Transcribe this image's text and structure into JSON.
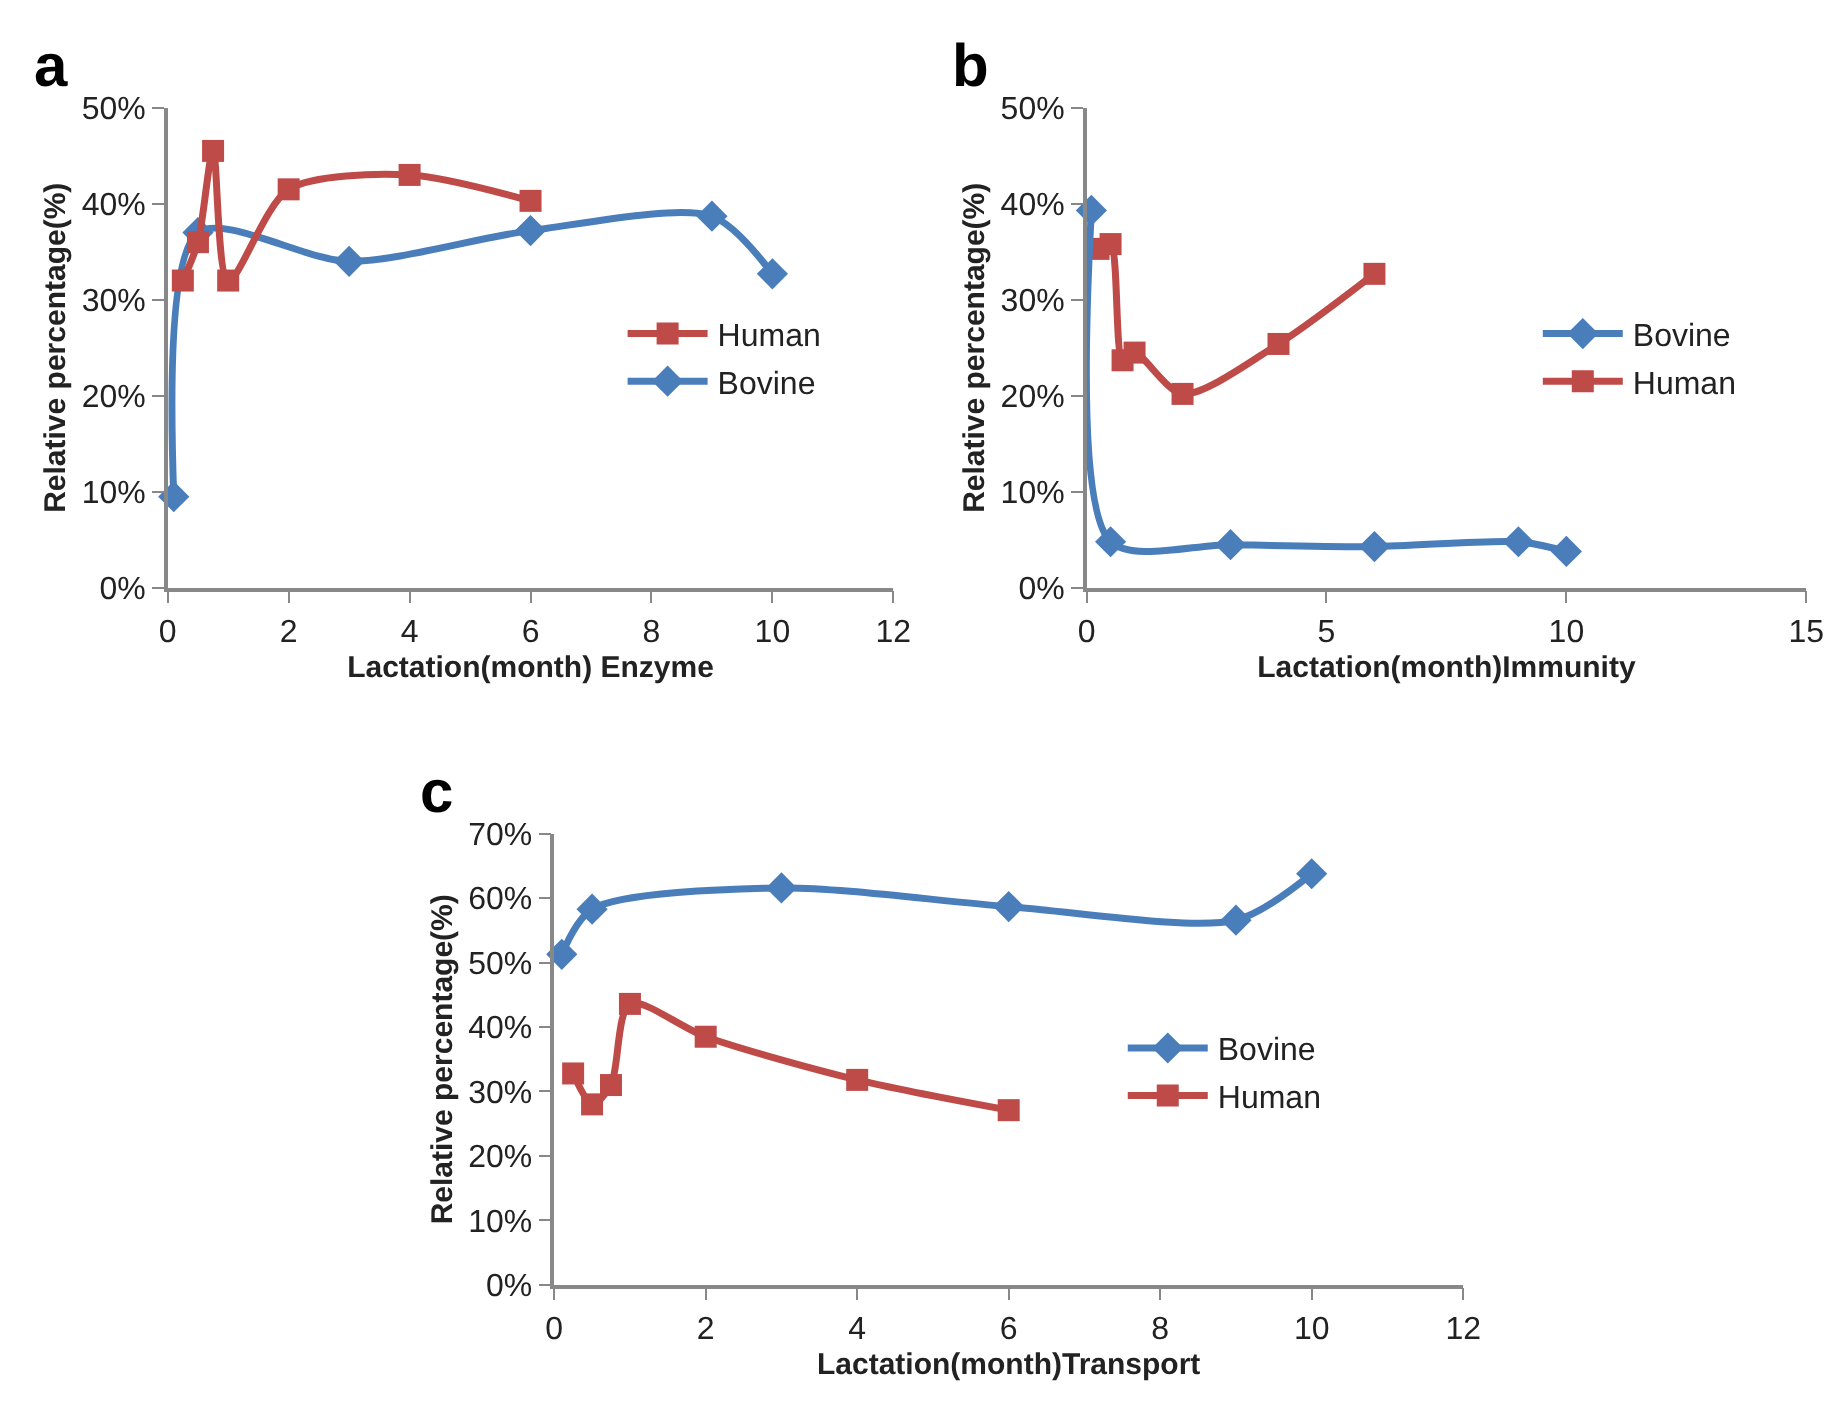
{
  "chart_data": [
    {
      "type": "line",
      "title": "a",
      "xlabel": "Lactation(month) Enzyme",
      "ylabel": "Relative percentage(%)",
      "xlim": [
        0,
        12
      ],
      "xticks": [
        0,
        2,
        4,
        6,
        8,
        10,
        12
      ],
      "ylim": [
        0,
        50
      ],
      "yticks": [
        {
          "value": 0,
          "label": "0%"
        },
        {
          "value": 10,
          "label": "10%"
        },
        {
          "value": 20,
          "label": "20%"
        },
        {
          "value": 30,
          "label": "30%"
        },
        {
          "value": 40,
          "label": "40%"
        },
        {
          "value": 50,
          "label": "50%"
        }
      ],
      "grid": false,
      "legend": "right",
      "series": [
        {
          "name": "Human",
          "color": "#be4b48",
          "marker": "square",
          "x": [
            0.25,
            0.5,
            0.75,
            1,
            2,
            4,
            6
          ],
          "values": [
            32,
            36,
            45.5,
            32,
            41.5,
            43,
            40.3
          ]
        },
        {
          "name": "Bovine",
          "color": "#4a7ebb",
          "marker": "diamond",
          "x": [
            0.1,
            0.5,
            3,
            6,
            9,
            10
          ],
          "values": [
            9.5,
            37,
            34,
            37.2,
            38.7,
            32.7
          ]
        }
      ]
    },
    {
      "type": "line",
      "title": "b",
      "xlabel": "Lactation(month)Immunity",
      "ylabel": "Relative percentage(%)",
      "xlim": [
        0,
        15
      ],
      "xticks": [
        0,
        5,
        10,
        15
      ],
      "ylim": [
        0,
        50
      ],
      "yticks": [
        {
          "value": 0,
          "label": "0%"
        },
        {
          "value": 10,
          "label": "10%"
        },
        {
          "value": 20,
          "label": "20%"
        },
        {
          "value": 30,
          "label": "30%"
        },
        {
          "value": 40,
          "label": "40%"
        },
        {
          "value": 50,
          "label": "50%"
        }
      ],
      "grid": false,
      "legend": "right",
      "series": [
        {
          "name": "Bovine",
          "color": "#4a7ebb",
          "marker": "diamond",
          "x": [
            0.1,
            0.5,
            3,
            6,
            9,
            10
          ],
          "values": [
            39.3,
            4.8,
            4.5,
            4.3,
            4.8,
            3.8
          ]
        },
        {
          "name": "Human",
          "color": "#be4b48",
          "marker": "square",
          "x": [
            0.25,
            0.5,
            0.75,
            1,
            2,
            4,
            6
          ],
          "values": [
            35.3,
            35.8,
            23.7,
            24.5,
            20.2,
            25.4,
            32.7
          ]
        }
      ]
    },
    {
      "type": "line",
      "title": "c",
      "xlabel": "Lactation(month)Transport",
      "ylabel": "Relative percentage(%)",
      "xlim": [
        0,
        12
      ],
      "xticks": [
        0,
        2,
        4,
        6,
        8,
        10,
        12
      ],
      "ylim": [
        0,
        70
      ],
      "yticks": [
        {
          "value": 0,
          "label": "0%"
        },
        {
          "value": 10,
          "label": "10%"
        },
        {
          "value": 20,
          "label": "20%"
        },
        {
          "value": 30,
          "label": "30%"
        },
        {
          "value": 40,
          "label": "40%"
        },
        {
          "value": 50,
          "label": "50%"
        },
        {
          "value": 60,
          "label": "60%"
        },
        {
          "value": 70,
          "label": "70%"
        }
      ],
      "grid": false,
      "legend": "right",
      "series": [
        {
          "name": "Bovine",
          "color": "#4a7ebb",
          "marker": "diamond",
          "x": [
            0.1,
            0.5,
            3,
            6,
            9,
            10
          ],
          "values": [
            51.3,
            58.3,
            61.6,
            58.7,
            56.6,
            63.8
          ]
        },
        {
          "name": "Human",
          "color": "#be4b48",
          "marker": "square",
          "x": [
            0.25,
            0.5,
            0.75,
            1,
            2,
            4,
            6
          ],
          "values": [
            32.8,
            28,
            31,
            43.6,
            38.5,
            31.8,
            27.1
          ]
        }
      ]
    }
  ]
}
